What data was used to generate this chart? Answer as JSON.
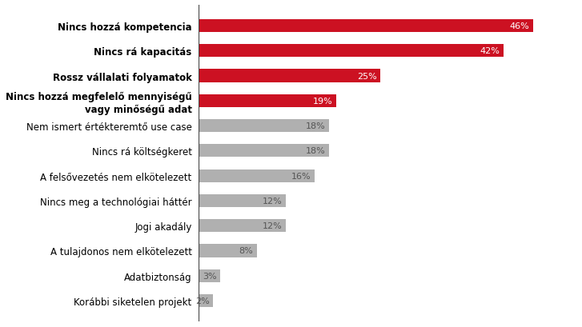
{
  "categories": [
    "Korábbi siketelen projekt",
    "Adatbiztonság",
    "A tulajdonos nem elkötelezett",
    "Jogi akadály",
    "Nincs meg a technológiai háttér",
    "A felsővezetés nem elkötelezett",
    "Nincs rá költségkeret",
    "Nem ismert értékteremtő use case",
    "Nincs hozzá megfelelő mennyiségű vagy minőségű adat",
    "Rossz vállalati folyamatok",
    "Nincs rá kapacitás",
    "Nincs hozzá kompetencia"
  ],
  "two_line_label": "Nincs hozzá megfelelő mennyiségű\nvagyminőségű adat",
  "two_line_label_line1": "Nincs hozzá megfelelő mennyiségű",
  "two_line_label_line2": "vagy minőségű adat",
  "values": [
    2,
    3,
    8,
    12,
    12,
    16,
    18,
    18,
    19,
    25,
    42,
    46
  ],
  "bar_colors": [
    "#b0b0b0",
    "#b0b0b0",
    "#b0b0b0",
    "#b0b0b0",
    "#b0b0b0",
    "#b0b0b0",
    "#b0b0b0",
    "#b0b0b0",
    "#cc1122",
    "#cc1122",
    "#cc1122",
    "#cc1122"
  ],
  "label_bold": [
    false,
    false,
    false,
    false,
    false,
    false,
    false,
    false,
    true,
    true,
    true,
    true
  ],
  "value_labels": [
    "2%",
    "3%",
    "8%",
    "12%",
    "12%",
    "16%",
    "18%",
    "18%",
    "19%",
    "25%",
    "42%",
    "46%"
  ],
  "background_color": "#ffffff",
  "bar_height": 0.52,
  "xlim": [
    0,
    52
  ],
  "two_line_idx": 8
}
